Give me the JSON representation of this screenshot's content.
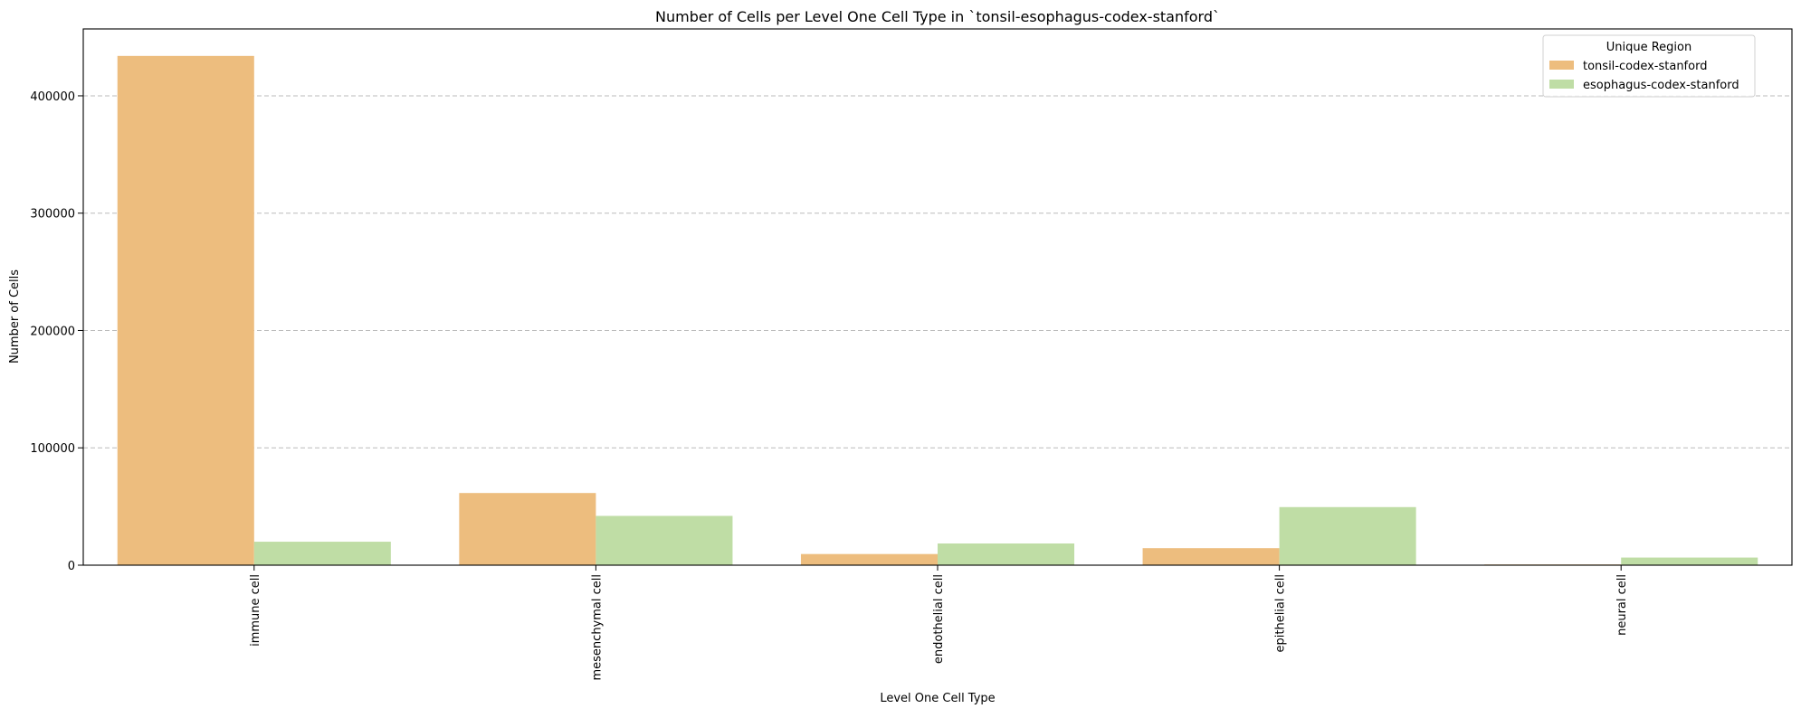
{
  "chart_data": {
    "type": "bar",
    "title": "Number of Cells per Level One Cell Type in `tonsil-esophagus-codex-stanford`",
    "xlabel": "Level One Cell Type",
    "ylabel": "Number of Cells",
    "categories": [
      "immune cell",
      "mesenchymal cell",
      "endothelial cell",
      "epithelial cell",
      "neural cell"
    ],
    "series": [
      {
        "name": "tonsil-codex-stanford",
        "color": "#EDBD7E",
        "values": [
          434000,
          61500,
          9500,
          14500,
          600
        ]
      },
      {
        "name": "esophagus-codex-stanford",
        "color": "#BFDDA5",
        "values": [
          20000,
          42000,
          18500,
          49500,
          6500
        ]
      }
    ],
    "ylim": [
      0,
      457000
    ],
    "yticks": [
      0,
      100000,
      200000,
      300000,
      400000
    ],
    "ytick_labels": [
      "0",
      "100000",
      "200000",
      "300000",
      "400000"
    ],
    "grid": "y-dashed",
    "legend": {
      "title": "Unique Region",
      "placement": "top-right"
    }
  }
}
